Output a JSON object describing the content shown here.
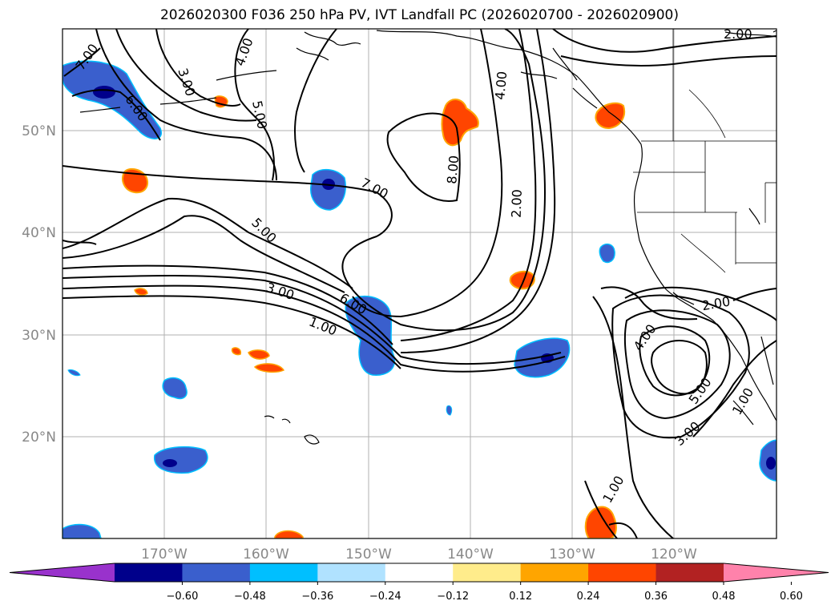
{
  "title": "2026020300 F036 250 hPa PV, IVT Landfall PC (2026020700 - 2026020900)",
  "map": {
    "lat_labels": [
      "50°N",
      "40°N",
      "30°N",
      "20°N"
    ],
    "lon_labels": [
      "170°W",
      "160°W",
      "150°W",
      "140°W",
      "130°W",
      "120°W"
    ],
    "contour_labels": [
      "7.00",
      "3.00",
      "4.00",
      "6.00",
      "5.00",
      "7.00",
      "8.00",
      "4.00",
      "2.00",
      "2.00",
      "5.00",
      "3.00",
      "6.00",
      "1.00",
      "2.00",
      "4.00",
      "5.00",
      "3.00",
      "1.00",
      "1.00"
    ],
    "contour_color": "#000000",
    "land_outline": "#000000"
  },
  "colorbar": {
    "colors": [
      "#9932cc",
      "#00008b",
      "#3a5fcd",
      "#00bfff",
      "#b0e2ff",
      "#ffffff",
      "#ffec8b",
      "#ffa500",
      "#ff4500",
      "#b22222",
      "#ff82ab"
    ],
    "tick_labels": [
      "−0.60",
      "−0.48",
      "−0.36",
      "−0.24",
      "−0.12",
      "0.12",
      "0.24",
      "0.36",
      "0.48",
      "0.60"
    ],
    "extend": "both"
  }
}
